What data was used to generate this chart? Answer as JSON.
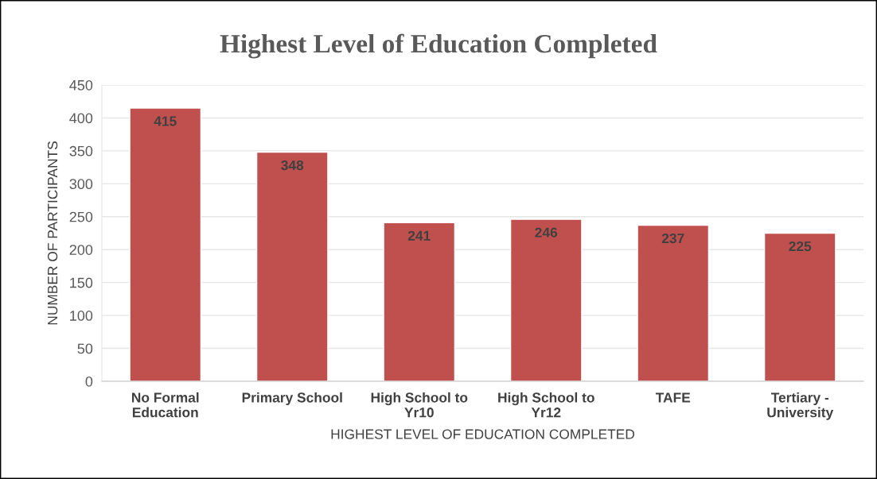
{
  "chart_data": {
    "type": "bar",
    "title": "Highest Level of Education Completed",
    "xlabel": "HIGHEST LEVEL OF EDUCATION COMPLETED",
    "ylabel": "NUMBER OF PARTICIPANTS",
    "categories": [
      "No Formal\nEducation",
      "Primary School",
      "High School to\nYr10",
      "High School to\nYr12",
      "TAFE",
      "Tertiary -\nUniversity"
    ],
    "values": [
      415,
      348,
      241,
      246,
      237,
      225
    ],
    "color": "#c0504d",
    "ylim": [
      0,
      450
    ],
    "yticks": [
      0,
      50,
      100,
      150,
      200,
      250,
      300,
      350,
      400,
      450
    ],
    "grid": "y",
    "data_labels": true,
    "legend": false
  }
}
